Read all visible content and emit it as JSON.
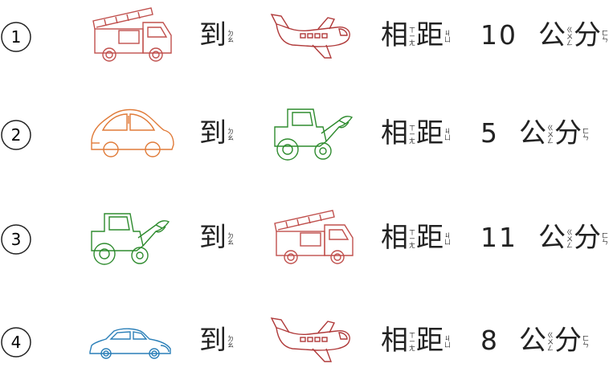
{
  "rows": [
    {
      "num": "1",
      "from": "fire-truck",
      "to": "airplane",
      "distance": "10"
    },
    {
      "num": "2",
      "from": "car",
      "to": "tractor",
      "distance": "5"
    },
    {
      "num": "3",
      "from": "tractor",
      "to": "fire-truck",
      "distance": "11"
    },
    {
      "num": "4",
      "from": "sports-car",
      "to": "airplane",
      "distance": "8"
    }
  ],
  "text": {
    "dao": "到",
    "dao_zhuyin": [
      "ㄉ",
      "ㄠ"
    ],
    "xiang": "相",
    "xiang_zhuyin": [
      "ㄒ",
      "ㄧ",
      "ㄤ"
    ],
    "ju": "距",
    "ju_zhuyin": [
      "ㄐ",
      "ㄩ"
    ],
    "gong": "公",
    "gong_zhuyin": [
      "ㄍ",
      "ㄨ",
      "ㄥ"
    ],
    "fen": "分",
    "fen_zhuyin": [
      "ㄈ",
      "ㄣ"
    ]
  },
  "colors": {
    "fire-truck": "#c0504d",
    "airplane": "#b03a3a",
    "car": "#e07b39",
    "tractor": "#2e8b2e",
    "sports-car": "#2a7fb8",
    "ink": "#222222"
  }
}
